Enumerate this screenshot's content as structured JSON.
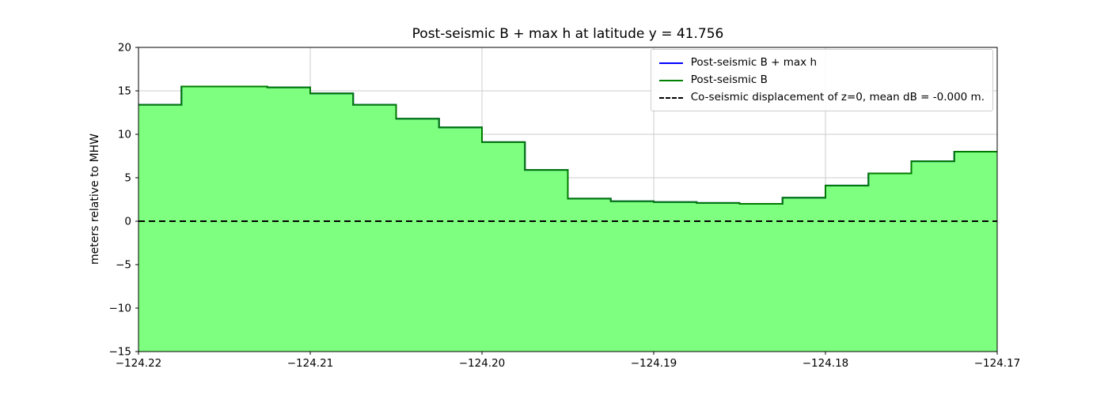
{
  "chart": {
    "title": "Post-seismic B + max h at latitude y = 41.756",
    "ylabel": "meters relative to MHW",
    "legend": [
      {
        "label": "Post-seismic B + max h",
        "color": "#0000ff",
        "dash": false
      },
      {
        "label": "Post-seismic B",
        "color": "#008000",
        "dash": false
      },
      {
        "label": "Co-seismic displacement of z=0, mean dB = -0.000 m.",
        "color": "#000000",
        "dash": true
      }
    ]
  },
  "chart_data": {
    "type": "area",
    "step": true,
    "title": "Post-seismic B + max h at latitude y = 41.756",
    "xlabel": "",
    "ylabel": "meters relative to MHW",
    "x_start": -124.22,
    "x_step": 0.0025,
    "values": [
      13.4,
      15.5,
      15.5,
      15.4,
      14.7,
      13.4,
      11.8,
      10.8,
      9.1,
      5.9,
      2.6,
      2.3,
      2.2,
      2.1,
      2.0,
      2.7,
      4.1,
      5.5,
      6.9,
      8.0
    ],
    "series": [
      {
        "name": "Post-seismic B + max h",
        "color": "#0000ff"
      },
      {
        "name": "Post-seismic B",
        "color": "#008000"
      }
    ],
    "zero_line": 0,
    "xlim": [
      -124.22,
      -124.17
    ],
    "ylim": [
      -15,
      20
    ],
    "xticks": [
      -124.22,
      -124.21,
      -124.2,
      -124.19,
      -124.18,
      -124.17
    ],
    "yticks": [
      -15,
      -10,
      -5,
      0,
      5,
      10,
      15,
      20
    ],
    "xtick_labels": [
      "−124.22",
      "−124.21",
      "−124.20",
      "−124.19",
      "−124.18",
      "−124.17"
    ],
    "ytick_labels": [
      "−15",
      "−10",
      "−5",
      "0",
      "5",
      "10",
      "15",
      "20"
    ],
    "grid": true,
    "grid_color": "#cccccc",
    "fill_color": "#7fff7f",
    "line_color": "#007a00",
    "zero_line_color": "#000000",
    "legend_position": "upper right"
  }
}
